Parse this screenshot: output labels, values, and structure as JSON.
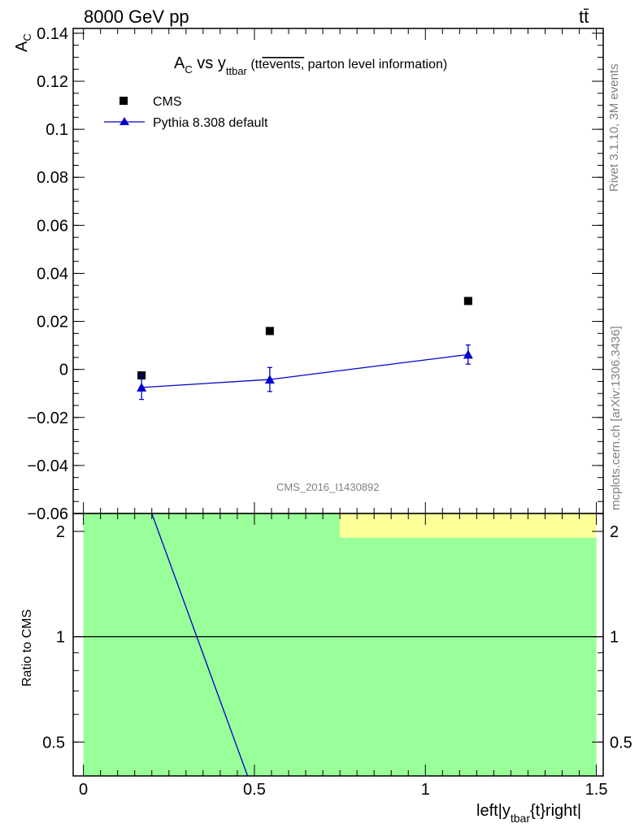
{
  "header": {
    "energy_label": "8000 GeV pp",
    "process_label": "tt̄"
  },
  "side_labels": {
    "rivet": "Rivet 3.1.10,  3M events",
    "mcplots": "mcplots.cern.ch [arXiv:1306.3436]"
  },
  "chart_data": [
    {
      "type": "scatter",
      "title": {
        "main": "A",
        "main_sub": "C",
        "vs": " vs y",
        "vs_sub": "ttbar",
        "paren_open": " (tt",
        "overline": "events,",
        "paren_rest": " parton level information)"
      },
      "ylabel": "A",
      "ylabel_sub": "C",
      "analysis_label": "CMS_2016_I1430892",
      "ylim": [
        -0.06,
        0.142
      ],
      "xlim": [
        -0.03,
        1.52
      ],
      "y_ticks": [
        {
          "v": 0.14,
          "label": "0.14"
        },
        {
          "v": 0.12,
          "label": "0.12"
        },
        {
          "v": 0.1,
          "label": "0.1"
        },
        {
          "v": 0.08,
          "label": "0.08"
        },
        {
          "v": 0.06,
          "label": "0.06"
        },
        {
          "v": 0.04,
          "label": "0.04"
        },
        {
          "v": 0.02,
          "label": "0.02"
        },
        {
          "v": 0.0,
          "label": "0"
        },
        {
          "v": -0.02,
          "label": "−0.02"
        },
        {
          "v": -0.04,
          "label": "−0.04"
        },
        {
          "v": -0.06,
          "label": "−0.06"
        }
      ],
      "legend_position": "top-left",
      "series": [
        {
          "name": "CMS",
          "marker": "square",
          "color": "#000000",
          "x": [
            0.17,
            0.545,
            1.125
          ],
          "y": [
            -0.0025,
            0.016,
            0.0285
          ]
        },
        {
          "name": "Pythia 8.308 default",
          "marker": "triangle",
          "color": "#0000cc",
          "x": [
            0.17,
            0.545,
            1.125
          ],
          "y": [
            -0.0075,
            -0.0042,
            0.0062
          ],
          "yerr": [
            0.005,
            0.005,
            0.004
          ]
        }
      ]
    },
    {
      "type": "line",
      "ylabel": "Ratio to CMS",
      "xlabel": {
        "pre": "left|y",
        "sub": "tbar",
        "post": "{t}right|"
      },
      "ylim": [
        0.4,
        2.25
      ],
      "xlim": [
        -0.03,
        1.52
      ],
      "x_ticks": [
        {
          "v": 0.0,
          "label": "0"
        },
        {
          "v": 0.5,
          "label": "0.5"
        },
        {
          "v": 1.0,
          "label": "1"
        },
        {
          "v": 1.5,
          "label": "1.5"
        }
      ],
      "y_ticks": [
        {
          "v": 2.0,
          "label": "2"
        },
        {
          "v": 1.0,
          "label": "1"
        },
        {
          "v": 0.5,
          "label": "0.5"
        }
      ],
      "bands": [
        {
          "x0": 0.0,
          "x1": 0.75,
          "y0": 0.4,
          "y1": 2.25,
          "color": "#99ff99"
        },
        {
          "x0": 0.75,
          "x1": 1.5,
          "y0": 0.4,
          "y1": 1.92,
          "color": "#99ff99"
        },
        {
          "x0": 0.75,
          "x1": 1.5,
          "y0": 1.92,
          "y1": 2.25,
          "color": "#ffff99"
        }
      ],
      "reference_line": 1.0,
      "series": [
        {
          "name": "Pythia 8.308 default",
          "color": "#0000cc",
          "x": [
            0.2,
            0.48
          ],
          "y": [
            2.25,
            0.4
          ]
        }
      ]
    }
  ]
}
